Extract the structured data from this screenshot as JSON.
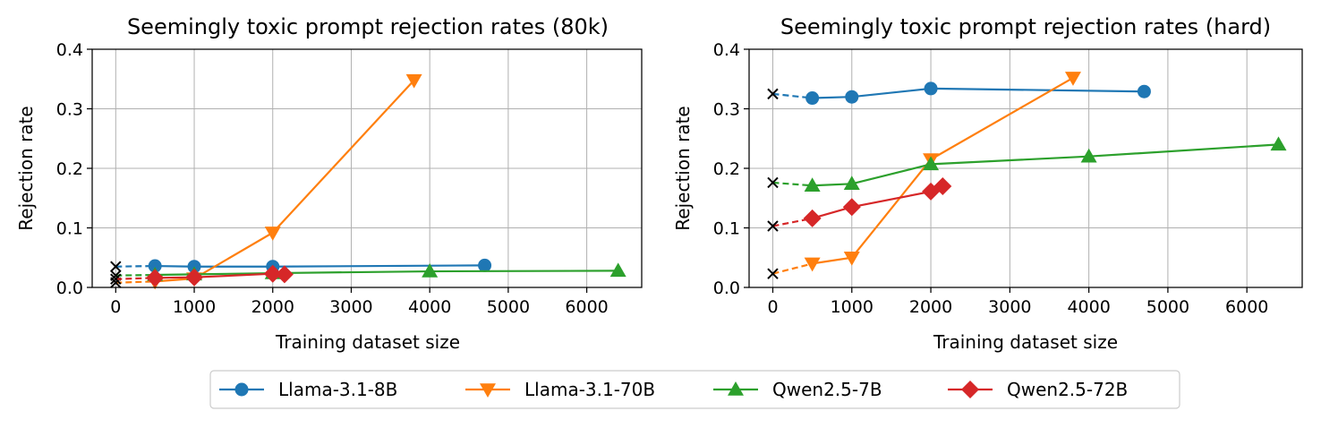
{
  "chart_data": [
    {
      "type": "line",
      "title": "Seemingly toxic prompt rejection rates (80k)",
      "xlabel": "Training dataset size",
      "ylabel": "Rejection rate",
      "xlim": [
        -300,
        6700
      ],
      "ylim": [
        0,
        0.4
      ],
      "xticks": [
        0,
        1000,
        2000,
        3000,
        4000,
        5000,
        6000
      ],
      "yticks": [
        0.0,
        0.1,
        0.2,
        0.3,
        0.4
      ],
      "xtick_labels": [
        "0",
        "1000",
        "2000",
        "3000",
        "4000",
        "5000",
        "6000"
      ],
      "ytick_labels": [
        "0.0",
        "0.1",
        "0.2",
        "0.3",
        "0.4"
      ],
      "grid": true,
      "series": [
        {
          "name": "Llama-3.1-8B",
          "baseline": 0.035,
          "x": [
            500,
            1000,
            2000,
            4700
          ],
          "y": [
            0.036,
            0.035,
            0.035,
            0.037
          ]
        },
        {
          "name": "Llama-3.1-70B",
          "baseline": 0.008,
          "x": [
            500,
            1000,
            2000,
            3800
          ],
          "y": [
            0.01,
            0.015,
            0.092,
            0.348
          ]
        },
        {
          "name": "Qwen2.5-7B",
          "baseline": 0.02,
          "x": [
            500,
            1000,
            2000,
            4000,
            6400
          ],
          "y": [
            0.021,
            0.022,
            0.024,
            0.027,
            0.028
          ]
        },
        {
          "name": "Qwen2.5-72B",
          "baseline": 0.014,
          "x": [
            500,
            1000,
            2000,
            2150
          ],
          "y": [
            0.016,
            0.017,
            0.023,
            0.022
          ]
        }
      ]
    },
    {
      "type": "line",
      "title": "Seemingly toxic prompt rejection rates (hard)",
      "xlabel": "Training dataset size",
      "ylabel": "Rejection rate",
      "xlim": [
        -300,
        6700
      ],
      "ylim": [
        0,
        0.4
      ],
      "xticks": [
        0,
        1000,
        2000,
        3000,
        4000,
        5000,
        6000
      ],
      "yticks": [
        0.0,
        0.1,
        0.2,
        0.3,
        0.4
      ],
      "xtick_labels": [
        "0",
        "1000",
        "2000",
        "3000",
        "4000",
        "5000",
        "6000"
      ],
      "ytick_labels": [
        "0.0",
        "0.1",
        "0.2",
        "0.3",
        "0.4"
      ],
      "grid": true,
      "series": [
        {
          "name": "Llama-3.1-8B",
          "baseline": 0.325,
          "x": [
            500,
            1000,
            2000,
            4700
          ],
          "y": [
            0.318,
            0.32,
            0.334,
            0.329
          ]
        },
        {
          "name": "Llama-3.1-70B",
          "baseline": 0.023,
          "x": [
            500,
            1000,
            2000,
            3800
          ],
          "y": [
            0.04,
            0.05,
            0.215,
            0.352
          ]
        },
        {
          "name": "Qwen2.5-7B",
          "baseline": 0.176,
          "x": [
            500,
            1000,
            2000,
            4000,
            6400
          ],
          "y": [
            0.171,
            0.174,
            0.207,
            0.22,
            0.24
          ]
        },
        {
          "name": "Qwen2.5-72B",
          "baseline": 0.103,
          "x": [
            500,
            1000,
            2000,
            2150
          ],
          "y": [
            0.116,
            0.135,
            0.161,
            0.17
          ]
        }
      ]
    }
  ],
  "legend": {
    "position": "bottom-center",
    "entries": [
      {
        "label": "Llama-3.1-8B",
        "marker": "circle"
      },
      {
        "label": "Llama-3.1-70B",
        "marker": "triangle-down"
      },
      {
        "label": "Qwen2.5-7B",
        "marker": "triangle-up"
      },
      {
        "label": "Qwen2.5-72B",
        "marker": "diamond"
      }
    ]
  },
  "colors": {
    "Llama-3.1-8B": "#1f77b4",
    "Llama-3.1-70B": "#ff7f0e",
    "Qwen2.5-7B": "#2ca02c",
    "Qwen2.5-72B": "#d62728",
    "baseline_marker": "#000000"
  }
}
